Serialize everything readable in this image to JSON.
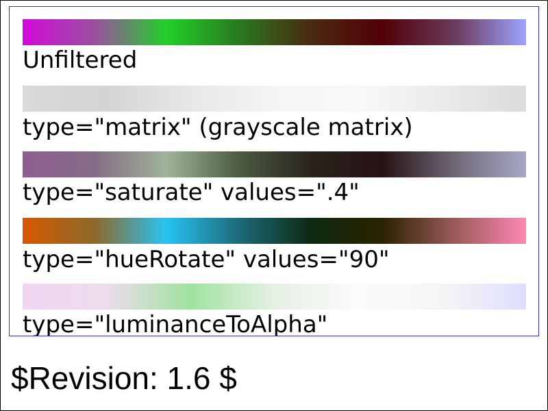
{
  "samples": [
    {
      "caption": "Unfiltered",
      "colors": [
        "#d20ad9",
        "#9a4f9f",
        "#22d02a",
        "#2a7a1f",
        "#4a2a10",
        "#520006",
        "#6a3a5a",
        "#9ea2ff"
      ]
    },
    {
      "caption": "type=\"matrix\" (grayscale matrix)",
      "colors": [
        "#d9d9d9",
        "#d4d4d4",
        "#e7e7e7",
        "#f5f5f5",
        "#f9f9f9",
        "#eaeaea",
        "#dbdbdb"
      ]
    },
    {
      "caption": "type=\"saturate\" values=\".4\"",
      "colors": [
        "#8f5d92",
        "#836d85",
        "#9fb49b",
        "#4b5c43",
        "#2a231c",
        "#261214",
        "#6f6775",
        "#a8a8c6"
      ]
    },
    {
      "caption": "type=\"hueRotate\" values=\"90\"",
      "colors": [
        "#d65800",
        "#8d6a2b",
        "#28c3f3",
        "#1e6b7a",
        "#0d2a12",
        "#2a2300",
        "#9a5a5a",
        "#ff88b4"
      ]
    },
    {
      "caption": "type=\"luminanceToAlpha\"",
      "colors": [
        "#f2d5f2",
        "#eddced",
        "#9fe29f",
        "#e6f0e4",
        "#fbfbfb",
        "#f5f5f7",
        "#dedefc"
      ]
    }
  ],
  "footer": {
    "revision": "$Revision: 1.6 $"
  }
}
